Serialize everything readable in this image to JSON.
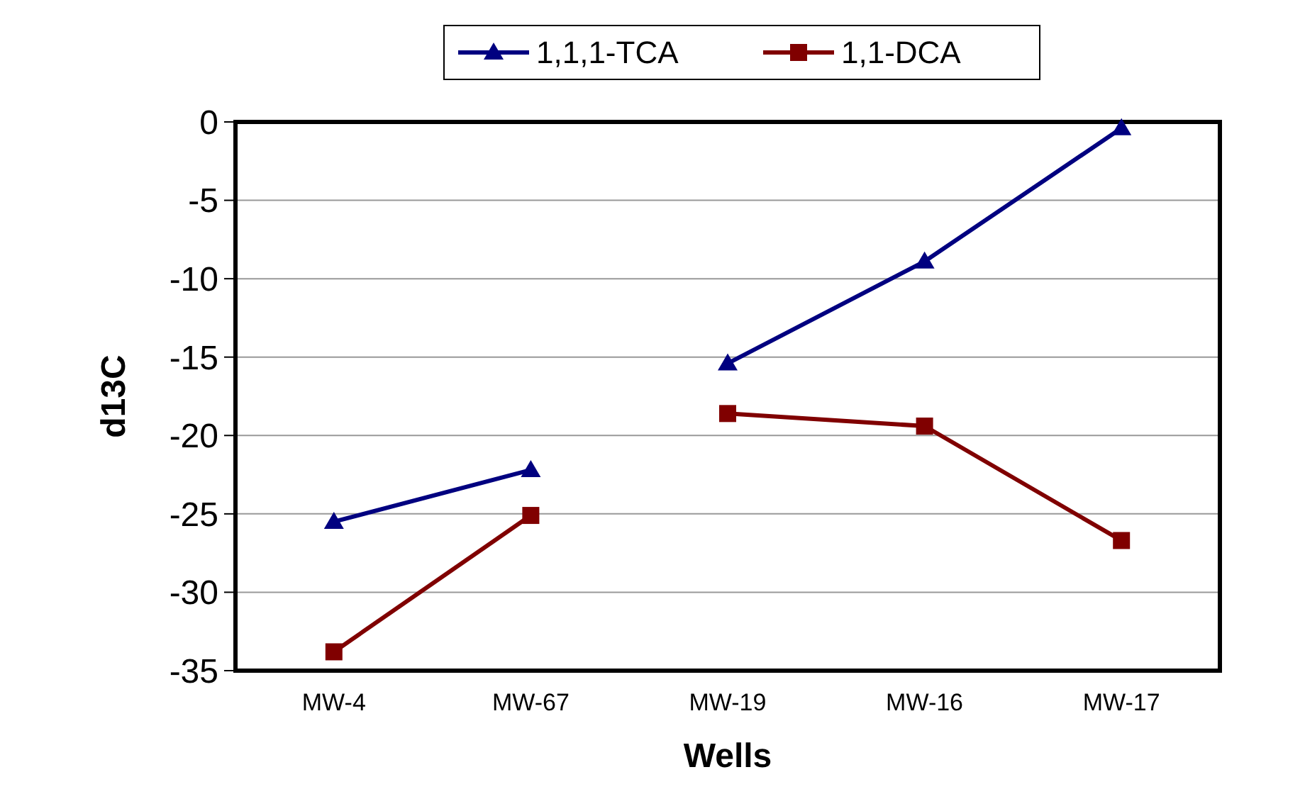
{
  "chart_data": {
    "type": "line",
    "xlabel": "Wells",
    "ylabel": "d13C",
    "categories": [
      "MW-4",
      "MW-67",
      "MW-19",
      "MW-16",
      "MW-17"
    ],
    "series": [
      {
        "name": "1,1,1-TCA",
        "color": "#000080",
        "marker": "triangle",
        "values": [
          -25.5,
          -22.2,
          null,
          null,
          null
        ]
      },
      {
        "name": "1,1-DCA",
        "color": "#800000",
        "marker": "square",
        "values": [
          -33.8,
          -25.1,
          null,
          null,
          null
        ]
      },
      {
        "color": "#000080",
        "marker": "triangle",
        "values": [
          null,
          null,
          -15.4,
          -8.9,
          -0.4
        ]
      },
      {
        "color": "#800000",
        "marker": "square",
        "values": [
          null,
          null,
          -18.6,
          -19.4,
          -26.7
        ]
      }
    ],
    "ylim": [
      -35,
      0
    ],
    "yticks": [
      -35,
      -30,
      -25,
      -20,
      -15,
      -10,
      -5,
      0
    ],
    "grid": "y",
    "legend": "top",
    "line_style": "solid"
  }
}
